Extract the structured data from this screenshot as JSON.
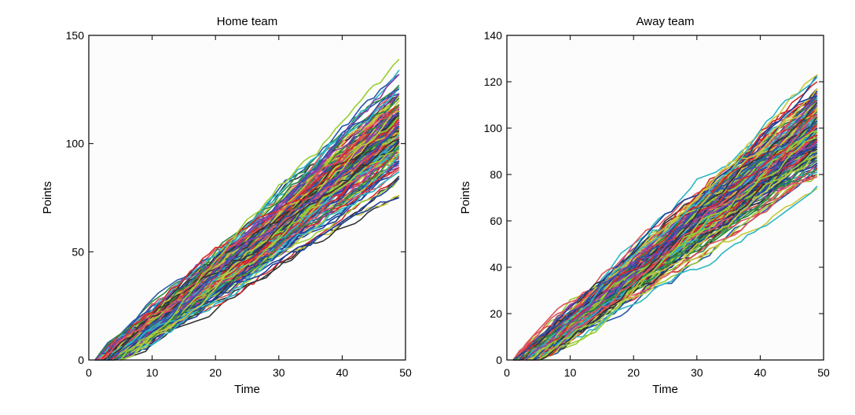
{
  "chart_data": [
    {
      "type": "line",
      "title": "Home team",
      "xlabel": "Time",
      "ylabel": "Points",
      "xlim": [
        0,
        50
      ],
      "ylim": [
        0,
        150
      ],
      "xticks": [
        "0",
        "10",
        "20",
        "30",
        "40",
        "50"
      ],
      "yticks": [
        "0",
        "50",
        "100",
        "150"
      ],
      "grid": false,
      "legend": "none",
      "background": "#fbfcfb",
      "num_trajectories": 200,
      "time_range": [
        1,
        49
      ],
      "start_points": 0,
      "final_points_range": [
        68,
        145
      ],
      "final_points_typical": 105,
      "note": "many cumulative point trajectories from simulated games",
      "series_colors": [
        "#1f3f99",
        "#d62728",
        "#2e8b3e",
        "#2bb6c4",
        "#c8c83a",
        "#8b3fa8",
        "#333333",
        "#2857a8",
        "#e0525a",
        "#9acd32"
      ]
    },
    {
      "type": "line",
      "title": "Away team",
      "xlabel": "Time",
      "ylabel": "Points",
      "xlim": [
        0,
        50
      ],
      "ylim": [
        0,
        140
      ],
      "xticks": [
        "0",
        "10",
        "20",
        "30",
        "40",
        "50"
      ],
      "yticks": [
        "0",
        "20",
        "40",
        "60",
        "80",
        "100",
        "120",
        "140"
      ],
      "grid": false,
      "legend": "none",
      "background": "#fbfcfb",
      "num_trajectories": 200,
      "time_range": [
        1,
        49
      ],
      "start_points": 0,
      "final_points_range": [
        68,
        135
      ],
      "final_points_typical": 98,
      "note": "many cumulative point trajectories from simulated games",
      "series_colors": [
        "#1f3f99",
        "#d62728",
        "#2e8b3e",
        "#2bb6c4",
        "#c8c83a",
        "#8b3fa8",
        "#333333",
        "#2857a8",
        "#e0525a",
        "#9acd32"
      ]
    }
  ]
}
